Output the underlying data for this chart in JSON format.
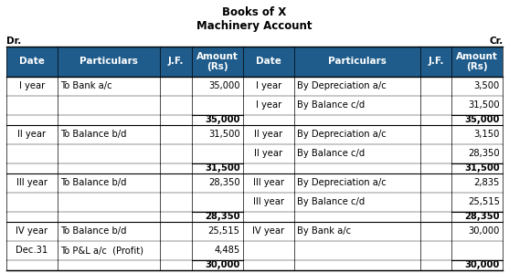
{
  "title1": "Books of X",
  "title2": "Machinery Account",
  "dr_label": "Dr.",
  "cr_label": "Cr.",
  "header_bg": "#1F5C8B",
  "header_text_color": "#FFFFFF",
  "header_cols": [
    "Date",
    "Particulars",
    "J.F.",
    "Amount\n(Rs)",
    "Date",
    "Particulars",
    "J.F.",
    "Amount\n(Rs)"
  ],
  "col_props": [
    0.077,
    0.155,
    0.048,
    0.077,
    0.077,
    0.19,
    0.048,
    0.077
  ],
  "row_data": [
    [
      "I year",
      "To Bank a/c",
      "",
      "35,000",
      "I year",
      "By Depreciation a/c",
      "",
      "3,500"
    ],
    [
      "",
      "",
      "",
      "",
      "I year",
      "By Balance c/d",
      "",
      "31,500"
    ],
    [
      "",
      "",
      "",
      "35,000",
      "",
      "",
      "",
      "35,000"
    ],
    [
      "II year",
      "To Balance b/d",
      "",
      "31,500",
      "II year",
      "By Depreciation a/c",
      "",
      "3,150"
    ],
    [
      "",
      "",
      "",
      "",
      "II year",
      "By Balance c/d",
      "",
      "28,350"
    ],
    [
      "",
      "",
      "",
      "31,500",
      "",
      "",
      "",
      "31,500"
    ],
    [
      "III year",
      "To Balance b/d",
      "",
      "28,350",
      "III year",
      "By Depreciation a/c",
      "",
      "2,835"
    ],
    [
      "",
      "",
      "",
      "",
      "III year",
      "By Balance c/d",
      "",
      "25,515"
    ],
    [
      "",
      "",
      "",
      "28,350",
      "",
      "",
      "",
      "28,350"
    ],
    [
      "IV year",
      "To Balance b/d",
      "",
      "25,515",
      "IV year",
      "By Bank a/c",
      "",
      "30,000"
    ],
    [
      "Dec.31",
      "To P&L a/c  (Profit)",
      "",
      "4,485",
      "",
      "",
      "",
      ""
    ],
    [
      "",
      "",
      "",
      "30,000",
      "",
      "",
      "",
      "30,000"
    ]
  ],
  "subtotal_rows": [
    2,
    5,
    8,
    11
  ],
  "text_color": "#000000",
  "font_size": 7.2,
  "header_font_size": 7.5
}
